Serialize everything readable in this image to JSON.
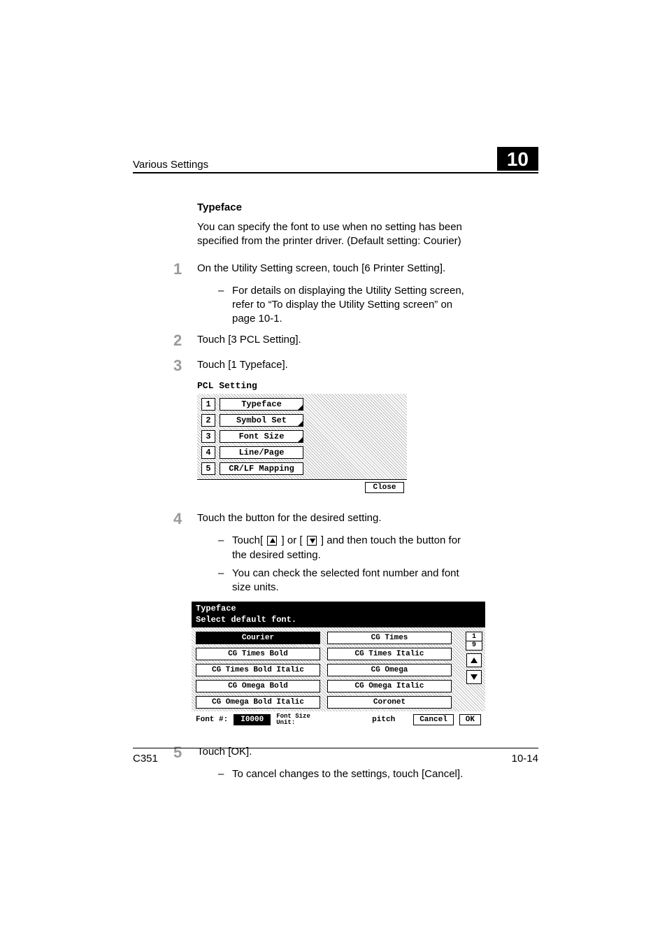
{
  "header": {
    "title": "Various Settings",
    "chapter": "10"
  },
  "section_heading": "Typeface",
  "intro": "You can specify the font to use when no setting has been specified from the printer driver. (Default setting: Courier)",
  "steps": {
    "s1": {
      "num": "1",
      "text": "On the Utility Setting screen, touch [6 Printer Setting].",
      "sub1": "For details on displaying the Utility Setting screen, refer to “To display the Utility Setting screen” on page 10-1."
    },
    "s2": {
      "num": "2",
      "text": "Touch [3 PCL Setting]."
    },
    "s3": {
      "num": "3",
      "text": "Touch [1 Typeface]."
    },
    "s4": {
      "num": "4",
      "text": "Touch the button for the desired setting.",
      "sub1a": "Touch[ ",
      "sub1b": " ] or [ ",
      "sub1c": " ] and then touch the button for the desired setting.",
      "sub2": "You can check the selected font number and font size units."
    },
    "s5": {
      "num": "5",
      "text": "Touch [OK].",
      "sub1": "To cancel changes to the settings, touch [Cancel]."
    }
  },
  "pcl": {
    "title": "PCL Setting",
    "items": [
      {
        "n": "1",
        "label": "Typeface",
        "sel": true
      },
      {
        "n": "2",
        "label": "Symbol Set",
        "sel": true
      },
      {
        "n": "3",
        "label": "Font Size",
        "sel": true
      },
      {
        "n": "4",
        "label": "Line/Page",
        "sel": false
      },
      {
        "n": "5",
        "label": "CR/LF Mapping",
        "sel": false
      }
    ],
    "close": "Close"
  },
  "tf": {
    "title1": "Typeface",
    "title2": "Select default font.",
    "fonts": [
      "Courier",
      "CG Times",
      "CG Times Bold",
      "CG Times Italic",
      "CG Times Bold Italic",
      "CG Omega",
      "CG Omega Bold",
      "CG Omega Italic",
      "CG Omega Bold Italic",
      "Coronet"
    ],
    "selected_index": 0,
    "counter_top": "1",
    "counter_bot": "9",
    "font_no_label": "Font #:",
    "font_no_value": "I0000",
    "fsu_label1": "Font Size",
    "fsu_label2": "Unit:",
    "pitch": "pitch",
    "cancel": "Cancel",
    "ok": "OK"
  },
  "footer": {
    "left": "C351",
    "right": "10-14"
  },
  "colors": {
    "text": "#000000",
    "bg": "#ffffff",
    "stepnum": "#9a9a9a",
    "hatch": "#bbbbbb"
  }
}
